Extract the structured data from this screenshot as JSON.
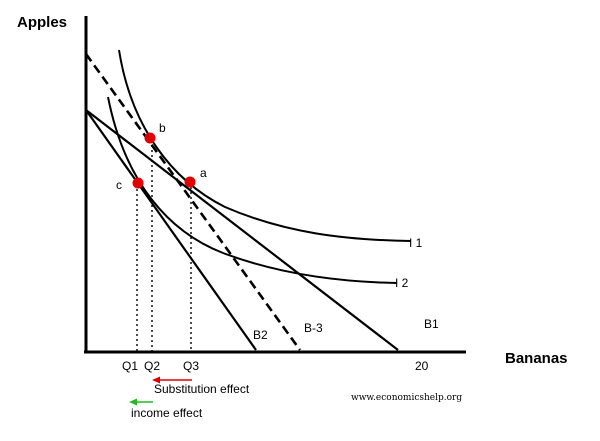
{
  "axes": {
    "y_title": "Apples",
    "x_title": "Bananas",
    "x_tick_20": "20"
  },
  "quantities": {
    "q1": "Q1",
    "q2": "Q2",
    "q3": "Q3"
  },
  "points": {
    "a": "a",
    "b": "b",
    "c": "c"
  },
  "curves": {
    "i1": "I 1",
    "i2": "I 2"
  },
  "budget_lines": {
    "b1": "B1",
    "b2": "B2",
    "b3": "B-3"
  },
  "effects": {
    "substitution": "Substitution effect",
    "income": "income effect",
    "substitution_color": "#e00000",
    "income_color": "#22bb22"
  },
  "point_color": "#e00000",
  "watermark": "www.economicshelp.org"
}
